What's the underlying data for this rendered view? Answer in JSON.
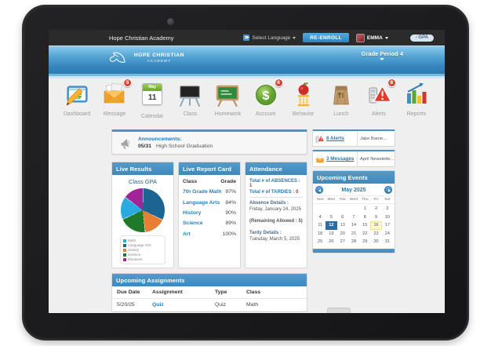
{
  "topbar": {
    "school_name": "Hope Christian Academy",
    "language_label": "Select Language",
    "reenroll_label": "RE-ENROLL",
    "user_name": "EMMA",
    "gpa_badge": "- GPA"
  },
  "header": {
    "logo_line1": "HOPE CHRISTIAN",
    "logo_line2": "ACADEMY",
    "grade_period": "Grade Period 4"
  },
  "nav": {
    "items": [
      {
        "label": "Dashboard"
      },
      {
        "label": "Message",
        "badge": "3"
      },
      {
        "label": "Calendar",
        "month": "May",
        "day": "11"
      },
      {
        "label": "Class"
      },
      {
        "label": "Homework"
      },
      {
        "label": "Account",
        "badge": "4",
        "glyph": "$"
      },
      {
        "label": "Behavior"
      },
      {
        "label": "Lunch"
      },
      {
        "label": "Alerts",
        "badge": "8"
      },
      {
        "label": "Reports"
      }
    ]
  },
  "announcements": {
    "title": "Announcements:",
    "date": "05/31",
    "text": "High School Graduation"
  },
  "live_results": {
    "title": "Live Results",
    "chart_title": "Class GPA"
  },
  "chart_data": {
    "type": "pie",
    "title": "Class GPA",
    "slices": [
      {
        "label": "Language Arts",
        "value": 32,
        "color": "#1d6493"
      },
      {
        "label": "History",
        "value": 16,
        "color": "#e87e33"
      },
      {
        "label": "Science",
        "value": 20,
        "color": "#1e7a29"
      },
      {
        "label": "Math",
        "value": 17,
        "color": "#29abe2"
      },
      {
        "label": "Electives",
        "value": 15,
        "color": "#a32499"
      }
    ],
    "legend": [
      "Math",
      "Language Arts",
      "History",
      "Science",
      "Electives"
    ],
    "legend_position": "bottom"
  },
  "report_card": {
    "title": "Live Report Card",
    "columns": [
      "Class",
      "Grade"
    ],
    "rows": [
      {
        "class": "7th Grade Math",
        "grade": "97%"
      },
      {
        "class": "Language Arts",
        "grade": "84%"
      },
      {
        "class": "History",
        "grade": "90%"
      },
      {
        "class": "Science",
        "grade": "89%"
      },
      {
        "class": "Art",
        "grade": "100%"
      }
    ]
  },
  "attendance": {
    "title": "Attendance",
    "absences_label": "Total # of ABSENCES :",
    "absences_value": "1",
    "tardies_label": "Total # of TARDIES :",
    "tardies_value": "0",
    "absence_details_label": "Absence Details :",
    "absence_date": "Friday, January 24, 2025",
    "remaining": "(Remaining Allowed : 5)",
    "tardy_details_label": "Tardy Details :",
    "tardy_date": "Tuesday, March 5, 2025"
  },
  "alerts_row": {
    "link": "8 Alerts",
    "preview": "Jake Barne..."
  },
  "messages_row": {
    "link": "3 Messages",
    "preview": "April Newslette..."
  },
  "events": {
    "title": "Upcoming Events",
    "month": "May 2025",
    "day_names": [
      "Sun",
      "Mon",
      "Tue",
      "Wed",
      "Thu",
      "Fri",
      "Sat"
    ],
    "weeks": [
      [
        "",
        "",
        "",
        "",
        "1",
        "2",
        "3"
      ],
      [
        "4",
        "5",
        "6",
        "7",
        "8",
        "9",
        "10"
      ],
      [
        "11",
        "12",
        "13",
        "14",
        "15",
        "16",
        "17"
      ],
      [
        "18",
        "19",
        "20",
        "21",
        "22",
        "23",
        "24"
      ],
      [
        "25",
        "26",
        "27",
        "28",
        "29",
        "30",
        "31"
      ]
    ],
    "selected_day": "12",
    "highlighted_day": "16"
  },
  "assignments": {
    "title": "Upcoming Assignments",
    "columns": [
      "Due Date",
      "Assignment",
      "Type",
      "Class"
    ],
    "rows": [
      {
        "due": "5/20/25",
        "assignment": "Quiz",
        "type": "Quiz",
        "class": "Math"
      }
    ]
  }
}
